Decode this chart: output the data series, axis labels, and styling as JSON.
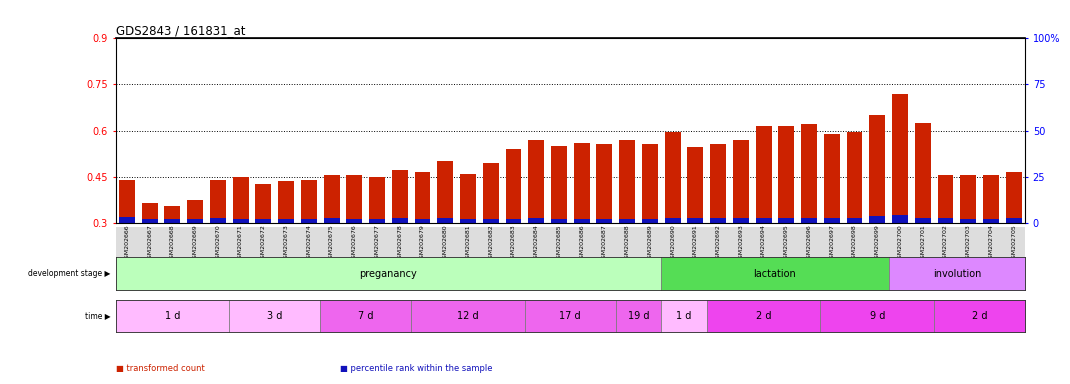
{
  "title": "GDS2843 / 161831_at",
  "samples": [
    "GSM202666",
    "GSM202667",
    "GSM202668",
    "GSM202669",
    "GSM202670",
    "GSM202671",
    "GSM202672",
    "GSM202673",
    "GSM202674",
    "GSM202675",
    "GSM202676",
    "GSM202677",
    "GSM202678",
    "GSM202679",
    "GSM202680",
    "GSM202681",
    "GSM202682",
    "GSM202683",
    "GSM202684",
    "GSM202685",
    "GSM202686",
    "GSM202687",
    "GSM202688",
    "GSM202689",
    "GSM202690",
    "GSM202691",
    "GSM202692",
    "GSM202693",
    "GSM202694",
    "GSM202695",
    "GSM202696",
    "GSM202697",
    "GSM202698",
    "GSM202699",
    "GSM202700",
    "GSM202701",
    "GSM202702",
    "GSM202703",
    "GSM202704",
    "GSM202705"
  ],
  "red_values": [
    0.44,
    0.365,
    0.355,
    0.375,
    0.44,
    0.45,
    0.425,
    0.435,
    0.44,
    0.455,
    0.455,
    0.45,
    0.47,
    0.465,
    0.5,
    0.46,
    0.495,
    0.54,
    0.57,
    0.55,
    0.56,
    0.555,
    0.57,
    0.555,
    0.595,
    0.545,
    0.555,
    0.57,
    0.615,
    0.615,
    0.62,
    0.59,
    0.595,
    0.65,
    0.72,
    0.625,
    0.455,
    0.455,
    0.455,
    0.465
  ],
  "blue_heights": [
    0.018,
    0.012,
    0.012,
    0.013,
    0.016,
    0.012,
    0.013,
    0.013,
    0.013,
    0.014,
    0.012,
    0.012,
    0.014,
    0.013,
    0.014,
    0.013,
    0.013,
    0.013,
    0.014,
    0.013,
    0.013,
    0.013,
    0.013,
    0.013,
    0.016,
    0.014,
    0.014,
    0.014,
    0.016,
    0.016,
    0.016,
    0.016,
    0.016,
    0.022,
    0.024,
    0.016,
    0.014,
    0.012,
    0.013,
    0.015
  ],
  "baseline": 0.3,
  "ylim_left": [
    0.3,
    0.9
  ],
  "ylim_right": [
    0,
    100
  ],
  "yticks_left": [
    0.3,
    0.45,
    0.6,
    0.75,
    0.9
  ],
  "ytick_left_labels": [
    "0.3",
    "0.45",
    "0.6",
    "0.75",
    "0.9"
  ],
  "yticks_right": [
    0,
    25,
    50,
    75,
    100
  ],
  "ytick_right_labels": [
    "0",
    "25",
    "50",
    "75",
    "100%"
  ],
  "hlines": [
    0.45,
    0.6,
    0.75
  ],
  "bar_color_red": "#cc2200",
  "bar_color_blue": "#1111bb",
  "bar_width": 0.7,
  "development_stages": [
    {
      "label": "preganancy",
      "start": 0,
      "end": 24,
      "color": "#bbffbb"
    },
    {
      "label": "lactation",
      "start": 24,
      "end": 34,
      "color": "#55dd55"
    },
    {
      "label": "involution",
      "start": 34,
      "end": 40,
      "color": "#dd88ff"
    }
  ],
  "time_periods": [
    {
      "label": "1 d",
      "start": 0,
      "end": 5,
      "color": "#ffbbff"
    },
    {
      "label": "3 d",
      "start": 5,
      "end": 9,
      "color": "#ffbbff"
    },
    {
      "label": "7 d",
      "start": 9,
      "end": 13,
      "color": "#ee66ee"
    },
    {
      "label": "12 d",
      "start": 13,
      "end": 18,
      "color": "#ee66ee"
    },
    {
      "label": "17 d",
      "start": 18,
      "end": 22,
      "color": "#ee66ee"
    },
    {
      "label": "19 d",
      "start": 22,
      "end": 24,
      "color": "#ee66ee"
    },
    {
      "label": "1 d",
      "start": 24,
      "end": 26,
      "color": "#ffbbff"
    },
    {
      "label": "2 d",
      "start": 26,
      "end": 31,
      "color": "#ee44ee"
    },
    {
      "label": "9 d",
      "start": 31,
      "end": 36,
      "color": "#ee44ee"
    },
    {
      "label": "2 d",
      "start": 36,
      "end": 40,
      "color": "#ee44ee"
    }
  ],
  "legend_items": [
    {
      "label": "transformed count",
      "color": "#cc2200"
    },
    {
      "label": "percentile rank within the sample",
      "color": "#1111bb"
    }
  ],
  "stage_label": "development stage",
  "time_label": "time",
  "arrow_char": "▶",
  "xtick_bg_color": "#dddddd",
  "bg_color": "#ffffff",
  "fig_width": 10.7,
  "fig_height": 3.84,
  "dpi": 100
}
